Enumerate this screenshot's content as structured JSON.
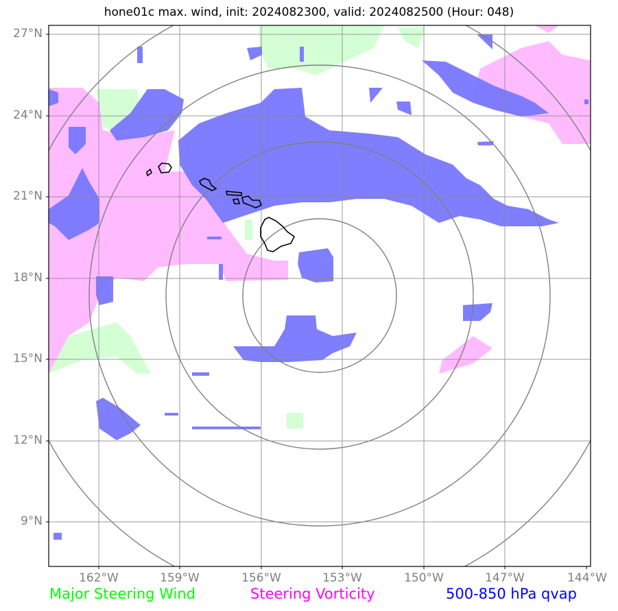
{
  "title": "hone01c max. wind, init: 2024082300, valid: 2024082500 (Hour: 048)",
  "map": {
    "lat_ticks": [
      "27°N",
      "24°N",
      "21°N",
      "18°N",
      "15°N",
      "12°N",
      "9°N"
    ],
    "lon_ticks": [
      "162°W",
      "159°W",
      "156°W",
      "153°W",
      "150°W",
      "147°W",
      "144°W"
    ],
    "extent": {
      "lon_min": -163.9,
      "lon_max": -143.9,
      "lat_min": 7.4,
      "lat_max": 27.35
    },
    "range_rings_center": {
      "lon": -154.0,
      "lat": 17.5
    },
    "range_ring_count": 4
  },
  "legend": {
    "green": "Major Steering Wind",
    "magenta": "Steering Vorticity",
    "blue": "500-850 hPa qvap"
  },
  "colors": {
    "green": "#00ff00",
    "magenta": "#ff00ff",
    "blue": "#0000ff",
    "fill_green": "#ccffcc",
    "fill_magenta": "#ffbbff",
    "fill_blue": "#7777ff",
    "grid": "#7f7f7f"
  }
}
